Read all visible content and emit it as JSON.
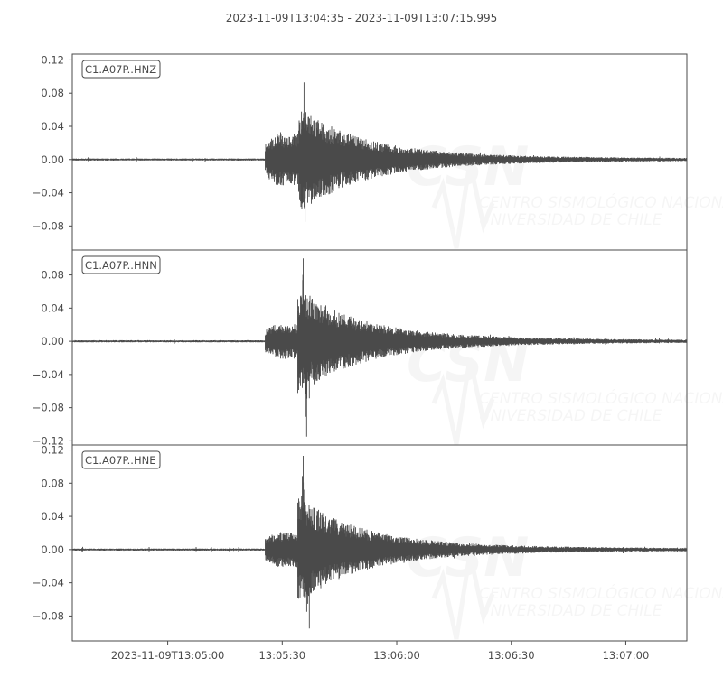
{
  "chart_data": {
    "type": "line",
    "title": "2023-11-09T13:04:35  -  2023-11-09T13:07:15.995",
    "x_range": [
      "2023-11-09T13:04:35",
      "2023-11-09T13:07:15.995"
    ],
    "x_ticks": [
      {
        "time": "13:05:00",
        "label": "2023-11-09T13:05:00"
      },
      {
        "time": "13:05:30",
        "label": "13:05:30"
      },
      {
        "time": "13:06:00",
        "label": "13:06:00"
      },
      {
        "time": "13:06:30",
        "label": "13:06:30"
      },
      {
        "time": "13:07:00",
        "label": "13:07:00"
      }
    ],
    "grid": false,
    "line_color": "#4a4a4a",
    "traces": [
      {
        "name": "C1.A07P..HNZ",
        "ylim": [
          -0.109,
          0.127
        ],
        "y_ticks": [
          {
            "v": 0.12,
            "label": "0.12"
          },
          {
            "v": 0.08,
            "label": "0.08"
          },
          {
            "v": 0.04,
            "label": "0.04"
          },
          {
            "v": 0,
            "label": "0.00"
          },
          {
            "v": -0.04,
            "label": "−0.04"
          },
          {
            "v": -0.08,
            "label": "−0.08"
          }
        ],
        "p_arrival": "13:05:25.5",
        "coda_amplitude": 0.03,
        "peaks": [
          {
            "time": "13:05:35.7",
            "value": 0.093
          },
          {
            "time": "13:05:36.0",
            "value": -0.075
          }
        ]
      },
      {
        "name": "C1.A07P..HNN",
        "ylim": [
          -0.125,
          0.11
        ],
        "y_ticks": [
          {
            "v": 0.08,
            "label": "0.08"
          },
          {
            "v": 0.04,
            "label": "0.04"
          },
          {
            "v": 0,
            "label": "0.00"
          },
          {
            "v": -0.04,
            "label": "−0.04"
          },
          {
            "v": -0.08,
            "label": "−0.08"
          },
          {
            "v": -0.12,
            "label": "−0.12"
          }
        ],
        "p_arrival": "13:05:25.5",
        "coda_amplitude": 0.02,
        "peaks": [
          {
            "time": "13:05:35.5",
            "value": 0.1
          },
          {
            "time": "13:05:36.4",
            "value": -0.115
          }
        ]
      },
      {
        "name": "C1.A07P..HNE",
        "ylim": [
          -0.11,
          0.126
        ],
        "y_ticks": [
          {
            "v": 0.12,
            "label": "0.12"
          },
          {
            "v": 0.08,
            "label": "0.08"
          },
          {
            "v": 0.04,
            "label": "0.04"
          },
          {
            "v": 0,
            "label": "0.00"
          },
          {
            "v": -0.04,
            "label": "−0.04"
          },
          {
            "v": -0.08,
            "label": "−0.08"
          }
        ],
        "p_arrival": "13:05:25.5",
        "coda_amplitude": 0.02,
        "peaks": [
          {
            "time": "13:05:35.5",
            "value": 0.113
          },
          {
            "time": "13:05:37.1",
            "value": -0.095
          }
        ]
      }
    ]
  },
  "watermark": {
    "logo": "CSN",
    "line1": "CENTRO SISMOLÓGICO NACIONAL",
    "line2": "UNIVERSIDAD DE CHILE"
  }
}
